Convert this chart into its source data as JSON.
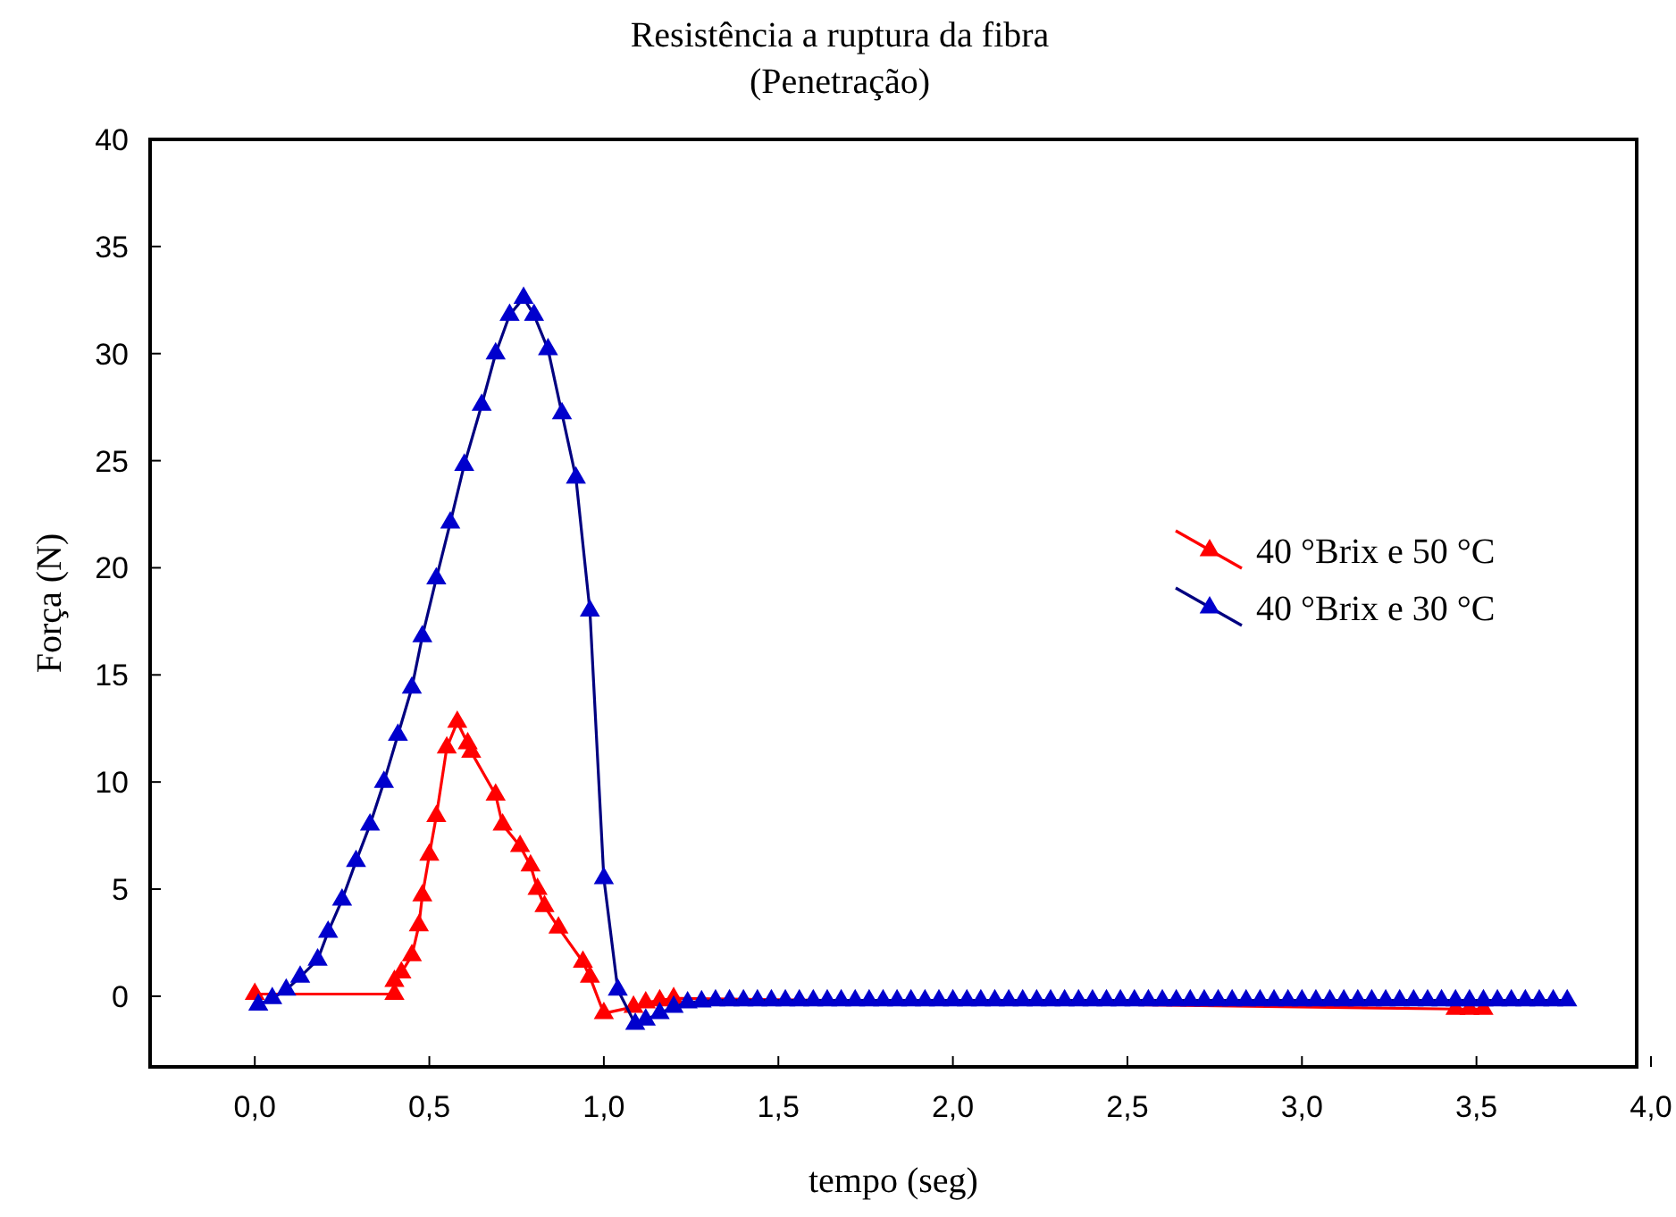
{
  "chart_data": {
    "type": "line",
    "title": "Resistência a ruptura da fibra",
    "subtitle": "(Penetração)",
    "xlabel": "tempo (seg)",
    "ylabel": "Força (N)",
    "xlim": [
      -0.3,
      4.0
    ],
    "ylim": [
      -3.3,
      40
    ],
    "xticks": [
      {
        "value": 0,
        "label": "0,0"
      },
      {
        "value": 0.5,
        "label": "0,5"
      },
      {
        "value": 1,
        "label": "1,0"
      },
      {
        "value": 1.5,
        "label": "1,5"
      },
      {
        "value": 2,
        "label": "2,0"
      },
      {
        "value": 2.5,
        "label": "2,5"
      },
      {
        "value": 3,
        "label": "3,0"
      },
      {
        "value": 3.5,
        "label": "3,5"
      },
      {
        "value": 4,
        "label": "4,0"
      }
    ],
    "yticks": [
      0,
      5,
      10,
      15,
      20,
      25,
      30,
      35,
      40
    ],
    "grid": false,
    "legend": "right",
    "marker": "triangle",
    "line_style": "solid",
    "series": [
      {
        "name": "40 °Brix e 50 °C",
        "color": "#ff0000",
        "x": [
          0.0,
          0.4,
          0.4,
          0.42,
          0.45,
          0.47,
          0.48,
          0.5,
          0.52,
          0.55,
          0.58,
          0.61,
          0.62,
          0.69,
          0.71,
          0.76,
          0.79,
          0.81,
          0.83,
          0.87,
          0.94,
          0.96,
          1.0,
          1.085,
          1.12,
          1.16,
          1.2,
          3.44,
          3.48,
          3.52
        ],
        "values": [
          0.1,
          0.1,
          0.7,
          1.1,
          1.9,
          3.3,
          4.7,
          6.6,
          8.4,
          11.6,
          12.8,
          11.8,
          11.4,
          9.4,
          8.0,
          7.0,
          6.1,
          5.0,
          4.2,
          3.2,
          1.6,
          0.9,
          -0.8,
          -0.5,
          -0.3,
          -0.2,
          -0.1,
          -0.6,
          -0.6,
          -0.6
        ]
      },
      {
        "name": "40 °Brix e 30 °C",
        "color": "#0000cd",
        "x": [
          0.01,
          0.05,
          0.09,
          0.13,
          0.18,
          0.21,
          0.25,
          0.29,
          0.33,
          0.37,
          0.41,
          0.45,
          0.48,
          0.52,
          0.56,
          0.6,
          0.65,
          0.69,
          0.73,
          0.77,
          0.8,
          0.84,
          0.88,
          0.92,
          0.96,
          1.0,
          1.04,
          1.09,
          1.12,
          1.16,
          1.2,
          1.24,
          1.28,
          1.32,
          1.36,
          1.4,
          1.44,
          1.48,
          1.52,
          1.56,
          1.6,
          1.64,
          1.68,
          1.72,
          1.76,
          1.8,
          1.84,
          1.88,
          1.92,
          1.96,
          2.0,
          2.04,
          2.08,
          2.12,
          2.16,
          2.2,
          2.24,
          2.28,
          2.32,
          2.36,
          2.4,
          2.44,
          2.48,
          2.52,
          2.56,
          2.6,
          2.64,
          2.68,
          2.72,
          2.76,
          2.8,
          2.84,
          2.88,
          2.92,
          2.96,
          3.0,
          3.04,
          3.08,
          3.12,
          3.16,
          3.2,
          3.24,
          3.28,
          3.32,
          3.36,
          3.4,
          3.44,
          3.48,
          3.52,
          3.56,
          3.6,
          3.64,
          3.68,
          3.72,
          3.76
        ],
        "values": [
          -0.4,
          -0.1,
          0.3,
          0.9,
          1.7,
          3.0,
          4.5,
          6.3,
          8.0,
          10.0,
          12.2,
          14.4,
          16.8,
          19.5,
          22.1,
          24.8,
          27.6,
          30.0,
          31.8,
          32.6,
          31.8,
          30.2,
          27.2,
          24.2,
          18.0,
          5.5,
          0.3,
          -1.3,
          -1.1,
          -0.8,
          -0.5,
          -0.3,
          -0.25,
          -0.2,
          -0.2,
          -0.2,
          -0.2,
          -0.2,
          -0.2,
          -0.2,
          -0.2,
          -0.2,
          -0.2,
          -0.2,
          -0.2,
          -0.2,
          -0.2,
          -0.2,
          -0.2,
          -0.2,
          -0.2,
          -0.2,
          -0.2,
          -0.2,
          -0.2,
          -0.2,
          -0.2,
          -0.2,
          -0.2,
          -0.2,
          -0.2,
          -0.2,
          -0.2,
          -0.2,
          -0.2,
          -0.2,
          -0.2,
          -0.2,
          -0.2,
          -0.2,
          -0.2,
          -0.2,
          -0.2,
          -0.2,
          -0.2,
          -0.2,
          -0.2,
          -0.2,
          -0.2,
          -0.2,
          -0.2,
          -0.2,
          -0.2,
          -0.2,
          -0.2,
          -0.2,
          -0.2,
          -0.2,
          -0.2,
          -0.2,
          -0.2,
          -0.2,
          -0.2,
          -0.2,
          -0.2
        ]
      }
    ]
  }
}
